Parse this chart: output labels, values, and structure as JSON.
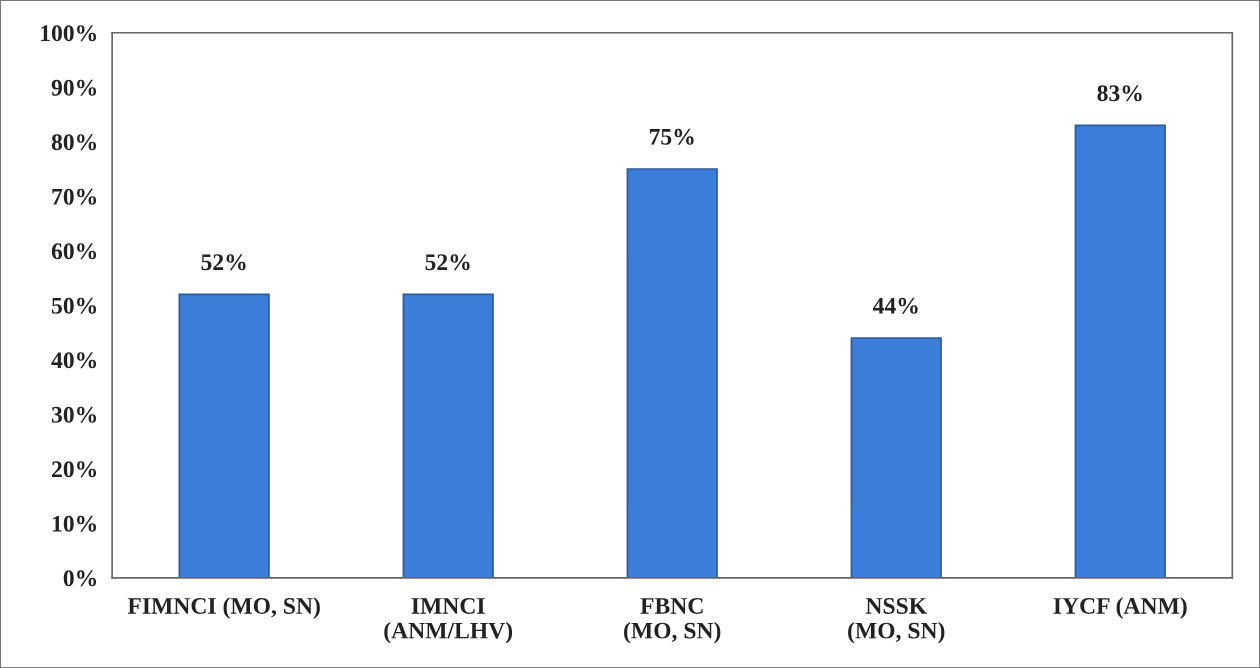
{
  "chart_data": {
    "type": "bar",
    "categories": [
      "FIMNCI (MO, SN)",
      "IMNCI\n(ANM/LHV)",
      "FBNC\n(MO, SN)",
      "NSSK\n(MO, SN)",
      "IYCF (ANM)"
    ],
    "values": [
      52,
      52,
      75,
      44,
      83
    ],
    "value_labels": [
      "52%",
      "52%",
      "75%",
      "44%",
      "83%"
    ],
    "color": "#3b7dd8",
    "ylim": [
      0,
      100
    ],
    "yticks": [
      {
        "value": 0,
        "label": "0%"
      },
      {
        "value": 10,
        "label": "10%"
      },
      {
        "value": 20,
        "label": "20%"
      },
      {
        "value": 30,
        "label": "30%"
      },
      {
        "value": 40,
        "label": "40%"
      },
      {
        "value": 50,
        "label": "50%"
      },
      {
        "value": 60,
        "label": "60%"
      },
      {
        "value": 70,
        "label": "70%"
      },
      {
        "value": 80,
        "label": "80%"
      },
      {
        "value": 90,
        "label": "90%"
      },
      {
        "value": 100,
        "label": "100%"
      }
    ],
    "grid": false,
    "legend": false
  }
}
